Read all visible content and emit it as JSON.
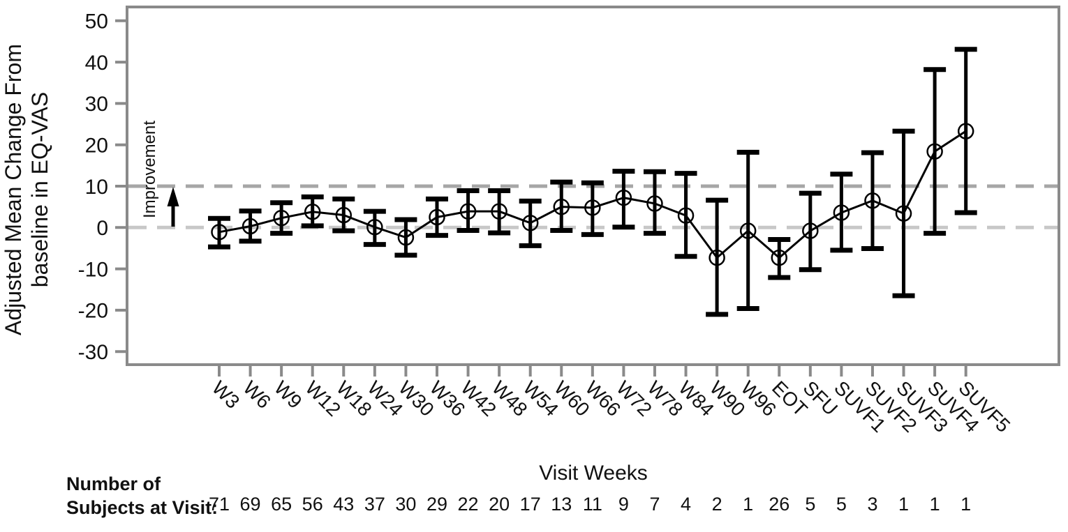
{
  "chart_data": {
    "type": "line",
    "title": "",
    "ylabel": {
      "line1": "Adjusted Mean Change From",
      "line2": "baseline in EQ-VAS"
    },
    "xlabel": "Visit Weeks",
    "improvement_annotation": "Improvement",
    "footer": {
      "line1": "Number of",
      "line2": "Subjects at Visit:"
    },
    "y_ticks": [
      50,
      40,
      30,
      20,
      10,
      0,
      -10,
      -20,
      -30
    ],
    "ylim": [
      -34,
      53
    ],
    "grid": "off",
    "legend_position": "none",
    "reference_lines": [
      {
        "value": 10,
        "style": "dashed",
        "color": "#a6a6a6"
      },
      {
        "value": 0,
        "style": "dashed",
        "color": "#c8c8c8"
      }
    ],
    "categories": [
      "W3",
      "W6",
      "W9",
      "W12",
      "W18",
      "W24",
      "W30",
      "W36",
      "W42",
      "W48",
      "W54",
      "W60",
      "W66",
      "W72",
      "W78",
      "W84",
      "W90",
      "W96",
      "EOT",
      "SFU",
      "SUVF1",
      "SUVF2",
      "SUVF3",
      "SUVF4",
      "SUVF5"
    ],
    "series": [
      {
        "means": [
          -1.1,
          0.3,
          2.3,
          3.8,
          3.0,
          0.1,
          -2.4,
          2.5,
          3.9,
          3.9,
          1.1,
          5.0,
          4.8,
          7.2,
          5.8,
          2.9,
          -7.3,
          -0.8,
          -7.3,
          -0.8,
          3.6,
          6.5,
          3.4,
          18.4,
          23.3
        ],
        "ci_lower": [
          -4.7,
          -3.3,
          -1.4,
          0.4,
          -0.8,
          -4.1,
          -6.7,
          -1.9,
          -0.7,
          -1.3,
          -4.4,
          -0.7,
          -1.7,
          0.1,
          -1.4,
          -7.0,
          -21.0,
          -19.6,
          -12.1,
          -10.2,
          -5.5,
          -5.1,
          -16.5,
          -1.4,
          3.6
        ],
        "ci_upper": [
          2.2,
          4.0,
          6.0,
          7.4,
          6.9,
          3.9,
          1.9,
          6.9,
          8.9,
          8.9,
          6.4,
          11.0,
          10.8,
          13.6,
          13.5,
          13.1,
          6.6,
          18.2,
          -2.9,
          8.3,
          12.9,
          18.1,
          23.3,
          38.2,
          43.1
        ]
      }
    ],
    "subjects_at_visit": [
      71,
      69,
      65,
      56,
      43,
      37,
      30,
      29,
      22,
      20,
      17,
      13,
      11,
      9,
      7,
      4,
      2,
      1,
      26,
      5,
      5,
      3,
      1,
      1,
      1
    ]
  },
  "colors": {
    "axis": "#8a8a8a",
    "series": "#000000",
    "text": "#111111"
  }
}
